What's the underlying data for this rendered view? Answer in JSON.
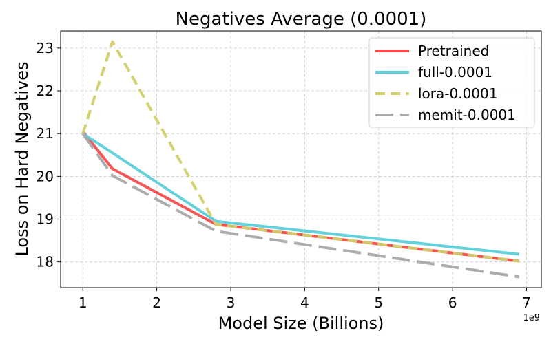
{
  "chart_data": {
    "type": "line",
    "title": "Negatives Average (0.0001)",
    "xlabel": "Model Size (Billions)",
    "ylabel": "Loss on Hard Negatives",
    "x_offset_label": "1e9",
    "xlim": [
      0.7,
      7.2
    ],
    "ylim": [
      17.4,
      23.4
    ],
    "xticks": [
      1,
      2,
      3,
      4,
      5,
      6,
      7
    ],
    "xtick_labels": [
      "1",
      "2",
      "3",
      "4",
      "5",
      "6",
      "7"
    ],
    "yticks": [
      18,
      19,
      20,
      21,
      22,
      23
    ],
    "ytick_labels": [
      "18",
      "19",
      "20",
      "21",
      "22",
      "23"
    ],
    "grid": true,
    "legend_position": "top-right",
    "x": [
      1.0,
      1.4,
      2.8,
      6.9
    ],
    "series": [
      {
        "name": "Pretrained",
        "values": [
          21.05,
          20.18,
          18.88,
          18.02
        ],
        "color": "#f44c4c",
        "dash": "solid"
      },
      {
        "name": "full-0.0001",
        "values": [
          21.0,
          20.55,
          18.95,
          18.18
        ],
        "color": "#5bcfda",
        "dash": "solid"
      },
      {
        "name": "lora-0.0001",
        "values": [
          21.0,
          23.15,
          18.88,
          18.02
        ],
        "color": "#d2cf6a",
        "dash": "dashed"
      },
      {
        "name": "memit-0.0001",
        "values": [
          21.0,
          20.02,
          18.72,
          17.65
        ],
        "color": "#a8a8a8",
        "dash": "longdash"
      }
    ]
  }
}
